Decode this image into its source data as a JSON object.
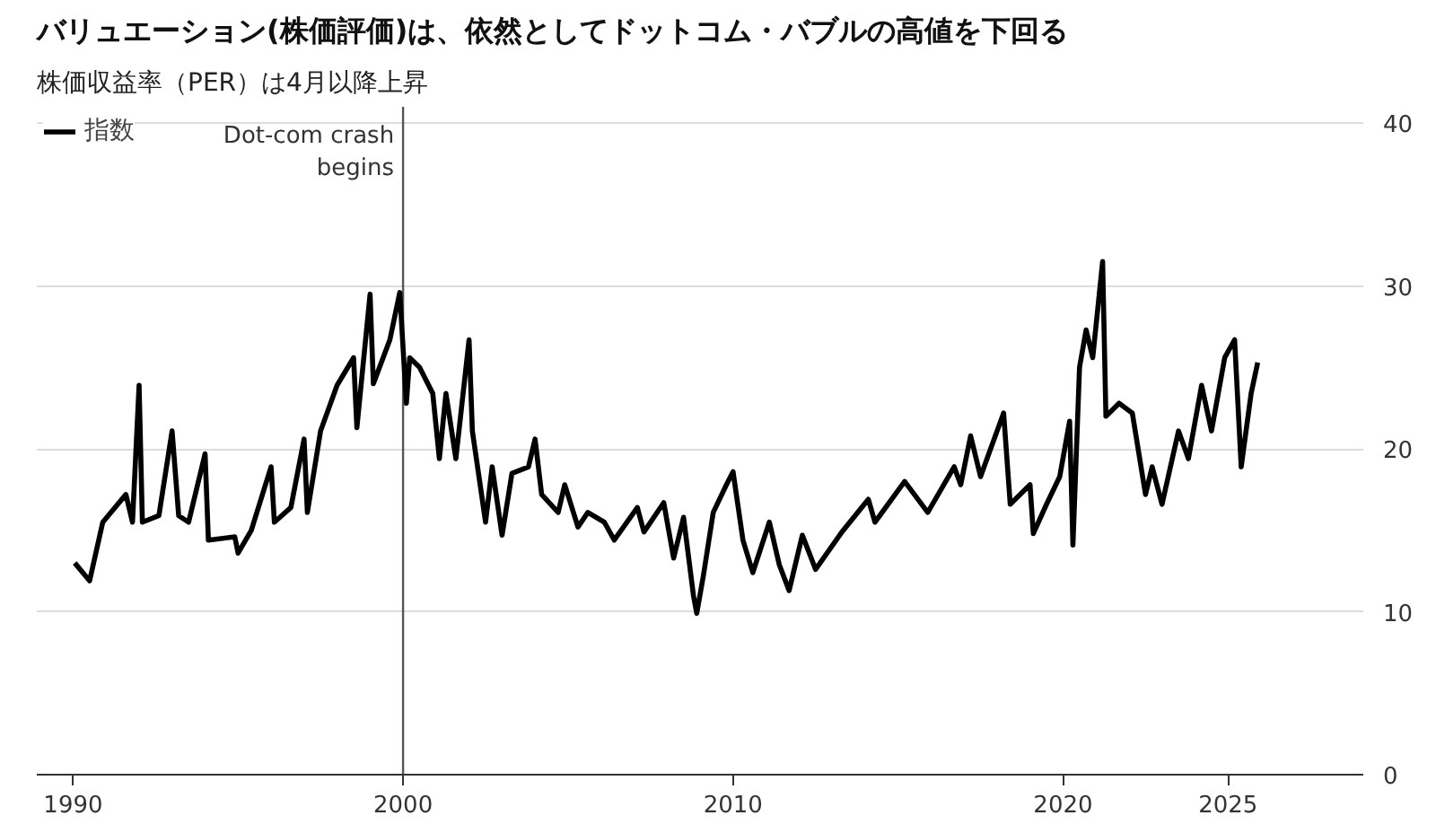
{
  "chart_data": {
    "type": "line",
    "title": "バリュエーション(株価評価)は、依然としてドットコム・バブルの高値を下回る",
    "subtitle": "株価収益率（PER）は4月以降上昇",
    "x": [
      1990.05,
      1990.5,
      1990.9,
      1991.6,
      1991.8,
      1992.0,
      1992.1,
      1992.6,
      1993.0,
      1993.2,
      1993.5,
      1994.0,
      1994.1,
      1994.9,
      1995.0,
      1995.4,
      1996.0,
      1996.1,
      1996.6,
      1997.0,
      1997.1,
      1997.5,
      1998.0,
      1998.5,
      1998.6,
      1999.0,
      1999.1,
      1999.6,
      1999.9,
      2000.1,
      2000.2,
      2000.5,
      2000.9,
      2001.1,
      2001.3,
      2001.6,
      2002.0,
      2002.1,
      2002.5,
      2002.7,
      2003.0,
      2003.3,
      2003.8,
      2004.0,
      2004.2,
      2004.7,
      2004.9,
      2005.3,
      2005.6,
      2006.1,
      2006.4,
      2007.1,
      2007.3,
      2007.9,
      2008.2,
      2008.5,
      2008.8,
      2008.9,
      2009.1,
      2009.4,
      2009.8,
      2010.0,
      2010.3,
      2010.6,
      2011.1,
      2011.4,
      2011.7,
      2012.1,
      2012.5,
      2013.3,
      2014.1,
      2014.3,
      2015.2,
      2015.9,
      2016.7,
      2016.9,
      2017.2,
      2017.5,
      2018.2,
      2018.4,
      2019.0,
      2019.1,
      2019.5,
      2019.9,
      2020.2,
      2020.3,
      2020.5,
      2020.7,
      2020.9,
      2021.2,
      2021.3,
      2021.7,
      2022.1,
      2022.5,
      2022.7,
      2023.0,
      2023.5,
      2023.8,
      2024.2,
      2024.5,
      2024.9,
      2025.2,
      2025.4,
      2025.7,
      2025.9
    ],
    "series": [
      {
        "name": "指数",
        "color": "#000000",
        "values": [
          13.0,
          11.9,
          15.5,
          17.2,
          15.5,
          23.9,
          15.5,
          15.9,
          21.1,
          15.9,
          15.5,
          19.7,
          14.4,
          14.6,
          13.6,
          15.0,
          18.9,
          15.5,
          16.4,
          20.6,
          16.1,
          21.1,
          23.9,
          25.6,
          21.3,
          29.5,
          24.0,
          26.7,
          29.6,
          22.8,
          25.6,
          25.0,
          23.4,
          19.4,
          23.4,
          19.4,
          26.7,
          21.1,
          15.5,
          18.9,
          14.7,
          18.5,
          18.9,
          20.6,
          17.2,
          16.1,
          17.8,
          15.2,
          16.1,
          15.5,
          14.4,
          16.4,
          14.9,
          16.7,
          13.3,
          15.8,
          11.0,
          9.9,
          12.2,
          16.1,
          17.8,
          18.6,
          14.4,
          12.4,
          15.5,
          12.9,
          11.3,
          14.7,
          12.6,
          14.9,
          16.9,
          15.5,
          18.0,
          16.1,
          18.9,
          17.8,
          20.8,
          18.3,
          22.2,
          16.6,
          17.8,
          14.8,
          16.6,
          18.3,
          21.7,
          14.1,
          25.0,
          27.3,
          25.6,
          31.5,
          22.0,
          22.8,
          22.2,
          17.2,
          18.9,
          16.6,
          21.1,
          19.4,
          23.9,
          21.1,
          25.6,
          26.7,
          18.9,
          23.4,
          25.3
        ]
      }
    ],
    "xlim": [
      1988.9,
      2029.1
    ],
    "ylim": [
      0,
      41
    ],
    "xticks": [
      1990,
      2000,
      2010,
      2020,
      2025
    ],
    "yticks": [
      0,
      10,
      20,
      30,
      40
    ],
    "grid": "y",
    "legend": "top left",
    "marker": "none",
    "line_style": "solid",
    "ref_lines": [
      {
        "axis": "x",
        "value": 2000,
        "label": "Dot-com crash\nbegins",
        "color": "#555555"
      }
    ]
  }
}
